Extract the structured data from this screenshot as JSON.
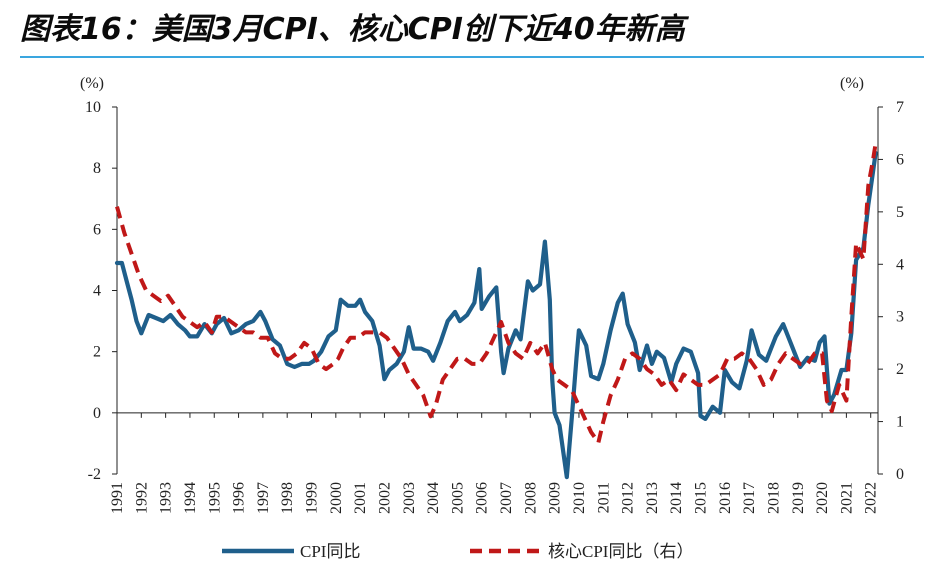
{
  "title": "图表16：美国3月CPI、核心CPI创下近40年新高",
  "chart_data": {
    "type": "line",
    "title": "图表16：美国3月CPI、核心CPI创下近40年新高",
    "left_unit": "(%)",
    "right_unit": "(%)",
    "left_ylim": [
      -2,
      10
    ],
    "right_ylim": [
      0,
      7
    ],
    "left_ticks": [
      "10",
      "8",
      "6",
      "4",
      "2",
      "0",
      "-2"
    ],
    "right_ticks": [
      "7",
      "6",
      "5",
      "4",
      "3",
      "2",
      "1",
      "0"
    ],
    "x_ticks": [
      "1991",
      "1992",
      "1993",
      "1994",
      "1995",
      "1996",
      "1997",
      "1998",
      "1999",
      "2000",
      "2001",
      "2002",
      "2003",
      "2004",
      "2005",
      "2006",
      "2007",
      "2008",
      "2009",
      "2010",
      "2011",
      "2012",
      "2013",
      "2014",
      "2015",
      "2016",
      "2017",
      "2018",
      "2019",
      "2020",
      "2021",
      "2022"
    ],
    "x_range": [
      1991.0,
      2022.3
    ],
    "legend_position": "bottom",
    "series": [
      {
        "name": "CPI同比",
        "axis": "left",
        "color": "#1f5f8b",
        "style": "solid",
        "points": [
          [
            1991.0,
            4.9
          ],
          [
            1991.2,
            4.9
          ],
          [
            1991.4,
            4.3
          ],
          [
            1991.6,
            3.7
          ],
          [
            1991.8,
            3.0
          ],
          [
            1992.0,
            2.6
          ],
          [
            1992.3,
            3.2
          ],
          [
            1992.6,
            3.1
          ],
          [
            1992.9,
            3.0
          ],
          [
            1993.2,
            3.2
          ],
          [
            1993.5,
            2.9
          ],
          [
            1993.8,
            2.7
          ],
          [
            1994.0,
            2.5
          ],
          [
            1994.3,
            2.5
          ],
          [
            1994.6,
            2.9
          ],
          [
            1994.9,
            2.6
          ],
          [
            1995.1,
            2.9
          ],
          [
            1995.4,
            3.1
          ],
          [
            1995.7,
            2.6
          ],
          [
            1996.0,
            2.7
          ],
          [
            1996.3,
            2.9
          ],
          [
            1996.6,
            3.0
          ],
          [
            1996.9,
            3.3
          ],
          [
            1997.1,
            3.0
          ],
          [
            1997.4,
            2.4
          ],
          [
            1997.7,
            2.2
          ],
          [
            1998.0,
            1.6
          ],
          [
            1998.3,
            1.5
          ],
          [
            1998.6,
            1.6
          ],
          [
            1998.9,
            1.6
          ],
          [
            1999.1,
            1.7
          ],
          [
            1999.4,
            2.0
          ],
          [
            1999.7,
            2.5
          ],
          [
            2000.0,
            2.7
          ],
          [
            2000.2,
            3.7
          ],
          [
            2000.5,
            3.5
          ],
          [
            2000.8,
            3.5
          ],
          [
            2001.0,
            3.7
          ],
          [
            2001.2,
            3.3
          ],
          [
            2001.5,
            3.0
          ],
          [
            2001.8,
            2.2
          ],
          [
            2002.0,
            1.1
          ],
          [
            2002.2,
            1.4
          ],
          [
            2002.5,
            1.6
          ],
          [
            2002.8,
            2.0
          ],
          [
            2003.0,
            2.8
          ],
          [
            2003.2,
            2.1
          ],
          [
            2003.5,
            2.1
          ],
          [
            2003.8,
            2.0
          ],
          [
            2004.0,
            1.7
          ],
          [
            2004.3,
            2.3
          ],
          [
            2004.6,
            3.0
          ],
          [
            2004.9,
            3.3
          ],
          [
            2005.1,
            3.0
          ],
          [
            2005.4,
            3.2
          ],
          [
            2005.7,
            3.6
          ],
          [
            2005.9,
            4.7
          ],
          [
            2006.0,
            3.4
          ],
          [
            2006.3,
            3.8
          ],
          [
            2006.6,
            4.1
          ],
          [
            2006.8,
            2.0
          ],
          [
            2006.9,
            1.3
          ],
          [
            2007.1,
            2.1
          ],
          [
            2007.4,
            2.7
          ],
          [
            2007.6,
            2.4
          ],
          [
            2007.9,
            4.3
          ],
          [
            2008.1,
            4.0
          ],
          [
            2008.4,
            4.2
          ],
          [
            2008.6,
            5.6
          ],
          [
            2008.8,
            3.7
          ],
          [
            2008.9,
            1.1
          ],
          [
            2009.0,
            0.0
          ],
          [
            2009.2,
            -0.4
          ],
          [
            2009.5,
            -2.1
          ],
          [
            2009.7,
            -0.2
          ],
          [
            2009.9,
            1.8
          ],
          [
            2010.0,
            2.7
          ],
          [
            2010.3,
            2.2
          ],
          [
            2010.5,
            1.2
          ],
          [
            2010.8,
            1.1
          ],
          [
            2011.0,
            1.6
          ],
          [
            2011.3,
            2.7
          ],
          [
            2011.6,
            3.6
          ],
          [
            2011.8,
            3.9
          ],
          [
            2012.0,
            2.9
          ],
          [
            2012.3,
            2.3
          ],
          [
            2012.5,
            1.4
          ],
          [
            2012.8,
            2.2
          ],
          [
            2013.0,
            1.6
          ],
          [
            2013.2,
            2.0
          ],
          [
            2013.5,
            1.8
          ],
          [
            2013.8,
            1.0
          ],
          [
            2014.0,
            1.6
          ],
          [
            2014.3,
            2.1
          ],
          [
            2014.6,
            2.0
          ],
          [
            2014.9,
            1.3
          ],
          [
            2015.0,
            -0.1
          ],
          [
            2015.2,
            -0.2
          ],
          [
            2015.5,
            0.2
          ],
          [
            2015.8,
            0.0
          ],
          [
            2016.0,
            1.4
          ],
          [
            2016.3,
            1.0
          ],
          [
            2016.6,
            0.8
          ],
          [
            2016.9,
            1.7
          ],
          [
            2017.1,
            2.7
          ],
          [
            2017.4,
            1.9
          ],
          [
            2017.7,
            1.7
          ],
          [
            2017.9,
            2.1
          ],
          [
            2018.1,
            2.5
          ],
          [
            2018.4,
            2.9
          ],
          [
            2018.7,
            2.3
          ],
          [
            2018.9,
            1.9
          ],
          [
            2019.1,
            1.5
          ],
          [
            2019.4,
            1.8
          ],
          [
            2019.7,
            1.7
          ],
          [
            2019.9,
            2.3
          ],
          [
            2020.1,
            2.5
          ],
          [
            2020.3,
            0.3
          ],
          [
            2020.5,
            0.6
          ],
          [
            2020.8,
            1.4
          ],
          [
            2021.0,
            1.4
          ],
          [
            2021.2,
            2.6
          ],
          [
            2021.4,
            5.0
          ],
          [
            2021.7,
            5.4
          ],
          [
            2021.9,
            6.8
          ],
          [
            2022.1,
            7.9
          ],
          [
            2022.2,
            8.5
          ]
        ]
      },
      {
        "name": "核心CPI同比（右）",
        "axis": "right",
        "color": "#c01818",
        "style": "dashed",
        "points": [
          [
            1991.0,
            5.1
          ],
          [
            1991.3,
            4.6
          ],
          [
            1991.6,
            4.2
          ],
          [
            1991.9,
            3.8
          ],
          [
            1992.2,
            3.5
          ],
          [
            1992.5,
            3.4
          ],
          [
            1992.8,
            3.3
          ],
          [
            1993.1,
            3.4
          ],
          [
            1993.4,
            3.2
          ],
          [
            1993.7,
            3.0
          ],
          [
            1994.0,
            2.9
          ],
          [
            1994.3,
            2.8
          ],
          [
            1994.6,
            2.9
          ],
          [
            1994.9,
            2.7
          ],
          [
            1995.1,
            3.0
          ],
          [
            1995.4,
            3.0
          ],
          [
            1995.7,
            2.9
          ],
          [
            1996.0,
            2.8
          ],
          [
            1996.3,
            2.7
          ],
          [
            1996.6,
            2.7
          ],
          [
            1996.9,
            2.6
          ],
          [
            1997.2,
            2.6
          ],
          [
            1997.5,
            2.3
          ],
          [
            1997.8,
            2.2
          ],
          [
            1998.1,
            2.2
          ],
          [
            1998.4,
            2.3
          ],
          [
            1998.7,
            2.5
          ],
          [
            1999.0,
            2.4
          ],
          [
            1999.3,
            2.1
          ],
          [
            1999.6,
            2.0
          ],
          [
            1999.9,
            2.1
          ],
          [
            2000.1,
            2.2
          ],
          [
            2000.3,
            2.4
          ],
          [
            2000.6,
            2.6
          ],
          [
            2000.9,
            2.6
          ],
          [
            2001.2,
            2.7
          ],
          [
            2001.5,
            2.7
          ],
          [
            2001.8,
            2.7
          ],
          [
            2002.1,
            2.6
          ],
          [
            2002.4,
            2.4
          ],
          [
            2002.7,
            2.2
          ],
          [
            2003.0,
            1.9
          ],
          [
            2003.3,
            1.7
          ],
          [
            2003.6,
            1.5
          ],
          [
            2003.9,
            1.1
          ],
          [
            2004.1,
            1.3
          ],
          [
            2004.4,
            1.8
          ],
          [
            2004.7,
            2.0
          ],
          [
            2005.0,
            2.2
          ],
          [
            2005.3,
            2.2
          ],
          [
            2005.6,
            2.1
          ],
          [
            2005.9,
            2.1
          ],
          [
            2006.2,
            2.3
          ],
          [
            2006.5,
            2.6
          ],
          [
            2006.8,
            2.9
          ],
          [
            2007.1,
            2.5
          ],
          [
            2007.4,
            2.3
          ],
          [
            2007.7,
            2.2
          ],
          [
            2008.0,
            2.5
          ],
          [
            2008.3,
            2.3
          ],
          [
            2008.6,
            2.5
          ],
          [
            2008.9,
            2.0
          ],
          [
            2009.1,
            1.8
          ],
          [
            2009.4,
            1.7
          ],
          [
            2009.7,
            1.6
          ],
          [
            2009.9,
            1.4
          ],
          [
            2010.2,
            1.1
          ],
          [
            2010.5,
            0.8
          ],
          [
            2010.8,
            0.6
          ],
          [
            2011.0,
            1.0
          ],
          [
            2011.3,
            1.5
          ],
          [
            2011.6,
            1.8
          ],
          [
            2011.9,
            2.2
          ],
          [
            2012.2,
            2.3
          ],
          [
            2012.5,
            2.2
          ],
          [
            2012.8,
            2.0
          ],
          [
            2013.1,
            1.9
          ],
          [
            2013.4,
            1.7
          ],
          [
            2013.7,
            1.8
          ],
          [
            2014.0,
            1.6
          ],
          [
            2014.3,
            1.9
          ],
          [
            2014.6,
            1.8
          ],
          [
            2014.9,
            1.7
          ],
          [
            2015.2,
            1.7
          ],
          [
            2015.5,
            1.8
          ],
          [
            2015.8,
            1.9
          ],
          [
            2016.1,
            2.2
          ],
          [
            2016.4,
            2.2
          ],
          [
            2016.7,
            2.3
          ],
          [
            2017.0,
            2.2
          ],
          [
            2017.3,
            2.0
          ],
          [
            2017.6,
            1.7
          ],
          [
            2017.9,
            1.8
          ],
          [
            2018.2,
            2.1
          ],
          [
            2018.5,
            2.3
          ],
          [
            2018.8,
            2.2
          ],
          [
            2019.1,
            2.1
          ],
          [
            2019.4,
            2.1
          ],
          [
            2019.7,
            2.3
          ],
          [
            2020.0,
            2.3
          ],
          [
            2020.2,
            1.4
          ],
          [
            2020.4,
            1.2
          ],
          [
            2020.7,
            1.7
          ],
          [
            2021.0,
            1.4
          ],
          [
            2021.2,
            3.0
          ],
          [
            2021.4,
            4.4
          ],
          [
            2021.7,
            4.1
          ],
          [
            2021.9,
            5.5
          ],
          [
            2022.1,
            6.0
          ],
          [
            2022.2,
            6.3
          ]
        ]
      }
    ]
  }
}
